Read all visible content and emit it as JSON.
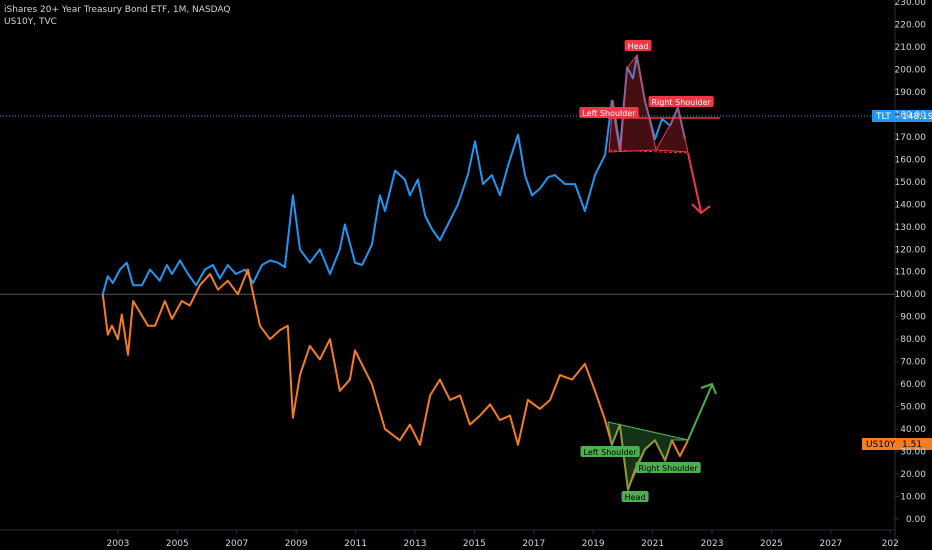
{
  "chart_data": {
    "type": "line",
    "title": "iShares 20+ Year Treasury Bond ETF, 1M, NASDAQ",
    "subtitle": "US10Y, TVC",
    "xlim": [
      1999.03,
      2029.16
    ],
    "xticks": [
      2003,
      2005,
      2007,
      2009,
      2011,
      2013,
      2015,
      2017,
      2019,
      2021,
      2023,
      2025,
      2027,
      {
        "value": 2029,
        "label": "202"
      }
    ],
    "ylim": [
      0,
      230
    ],
    "yticks": [
      {
        "value": 0,
        "label": "0.00"
      },
      {
        "value": 10,
        "label": "10.00"
      },
      {
        "value": 20,
        "label": "20.00"
      },
      {
        "value": 30,
        "label": "30.00"
      },
      {
        "value": 40,
        "label": "40.00"
      },
      {
        "value": 50,
        "label": "50.00"
      },
      {
        "value": 60,
        "label": "60.00"
      },
      {
        "value": 70,
        "label": "70.00"
      },
      {
        "value": 80,
        "label": "80.00"
      },
      {
        "value": 90,
        "label": "90.00"
      },
      {
        "value": 100,
        "label": "100.00"
      },
      {
        "value": 110,
        "label": "110.00"
      },
      {
        "value": 120,
        "label": "120.00"
      },
      {
        "value": 130,
        "label": "130.00"
      },
      {
        "value": 140,
        "label": "140.00"
      },
      {
        "value": 150,
        "label": "150.00"
      },
      {
        "value": 160,
        "label": "160.00"
      },
      {
        "value": 170,
        "label": "170.00"
      },
      {
        "value": 180,
        "label": "180.00"
      },
      {
        "value": 190,
        "label": "190.00"
      },
      {
        "value": 200,
        "label": "200.00"
      },
      {
        "value": 210,
        "label": "210.00"
      },
      {
        "value": 220,
        "label": "220.00"
      },
      {
        "value": 230,
        "label": "230.00"
      }
    ],
    "series": [
      {
        "name": "TLT",
        "price": "148.19",
        "color": "#2196f3",
        "x": [
          2002.49,
          2002.66,
          2002.83,
          2003.07,
          2003.3,
          2003.51,
          2003.81,
          2004.08,
          2004.41,
          2004.65,
          2004.82,
          2005.09,
          2005.36,
          2005.63,
          2005.93,
          2006.2,
          2006.43,
          2006.7,
          2006.97,
          2007.28,
          2007.55,
          2007.85,
          2008.12,
          2008.39,
          2008.62,
          2008.89,
          2009.13,
          2009.46,
          2009.8,
          2010.14,
          2010.47,
          2010.64,
          2010.98,
          2011.22,
          2011.55,
          2011.82,
          2011.99,
          2012.33,
          2012.66,
          2012.83,
          2013.1,
          2013.34,
          2013.57,
          2013.84,
          2014.11,
          2014.45,
          2014.78,
          2015.02,
          2015.29,
          2015.59,
          2015.86,
          2016.13,
          2016.47,
          2016.7,
          2016.94,
          2017.21,
          2017.48,
          2017.71,
          2018.05,
          2018.39,
          2018.72,
          2019.06,
          2019.4,
          2019.63,
          2019.9,
          2020.14,
          2020.34,
          2020.47,
          2020.74,
          2021.08,
          2021.32,
          2021.59,
          2021.85,
          2022.09
        ],
        "values": [
          100,
          108,
          105,
          111,
          114,
          104,
          104,
          111,
          106,
          113,
          109,
          115,
          109,
          104,
          111,
          113,
          107,
          113,
          109,
          111,
          105,
          113,
          115,
          114,
          112,
          144,
          120,
          114,
          120,
          109,
          120,
          131,
          114,
          113,
          122,
          144,
          137,
          155,
          151,
          144,
          151,
          135,
          129,
          124,
          131,
          140,
          153,
          168,
          149,
          153,
          144,
          157,
          171,
          153,
          144,
          147,
          152,
          153,
          149,
          149,
          137,
          153,
          162,
          186,
          164,
          201,
          196,
          206,
          186,
          169,
          178,
          175,
          183,
          169
        ]
      },
      {
        "name": "US10Y",
        "price": "1.51",
        "color": "#f57c20",
        "x": [
          2002.49,
          2002.66,
          2002.8,
          2003.0,
          2003.13,
          2003.34,
          2003.51,
          2003.74,
          2004.01,
          2004.25,
          2004.58,
          2004.82,
          2005.15,
          2005.42,
          2005.76,
          2006.1,
          2006.37,
          2006.7,
          2007.04,
          2007.38,
          2007.78,
          2008.12,
          2008.45,
          2008.72,
          2008.89,
          2009.13,
          2009.46,
          2009.8,
          2010.14,
          2010.47,
          2010.81,
          2010.98,
          2011.32,
          2011.55,
          2011.99,
          2012.49,
          2012.83,
          2013.17,
          2013.51,
          2013.84,
          2014.18,
          2014.52,
          2014.85,
          2015.19,
          2015.53,
          2015.86,
          2016.2,
          2016.47,
          2016.8,
          2017.21,
          2017.55,
          2017.88,
          2018.29,
          2018.72,
          2019.06,
          2019.4,
          2019.63,
          2019.9,
          2020.17,
          2020.41,
          2020.74,
          2021.08,
          2021.42,
          2021.65,
          2021.92,
          2022.19
        ],
        "values": [
          100,
          82,
          86,
          80,
          91,
          73,
          97,
          92,
          86,
          86,
          97,
          89,
          97,
          95,
          104,
          109,
          102,
          106,
          100,
          111,
          86,
          80,
          84,
          86,
          45,
          64,
          77,
          71,
          80,
          57,
          62,
          75,
          66,
          60,
          40,
          35,
          42,
          33,
          55,
          62,
          53,
          55,
          42,
          46,
          51,
          44,
          46,
          33,
          53,
          49,
          53,
          64,
          62,
          69,
          57,
          44,
          33,
          42,
          13,
          22,
          31,
          35,
          26,
          35,
          28,
          35
        ]
      }
    ],
    "annotations": [
      {
        "text": "Head",
        "x": 2020.51,
        "y": 210.4,
        "color": "#f23645"
      },
      {
        "text": "Left Shoulder",
        "x": 2019.53,
        "y": 180.6,
        "color": "#f23645"
      },
      {
        "text": "Right Shoulder",
        "x": 2021.96,
        "y": 185.5,
        "color": "#f23645"
      },
      {
        "text": "Left Shoulder",
        "x": 2019.57,
        "y": 29.8,
        "color": "#4caf50"
      },
      {
        "text": "Head",
        "x": 2020.41,
        "y": 9.8,
        "color": "#4caf50"
      },
      {
        "text": "Right Shoulder",
        "x": 2021.52,
        "y": 22.7,
        "color": "#4caf50"
      }
    ]
  }
}
